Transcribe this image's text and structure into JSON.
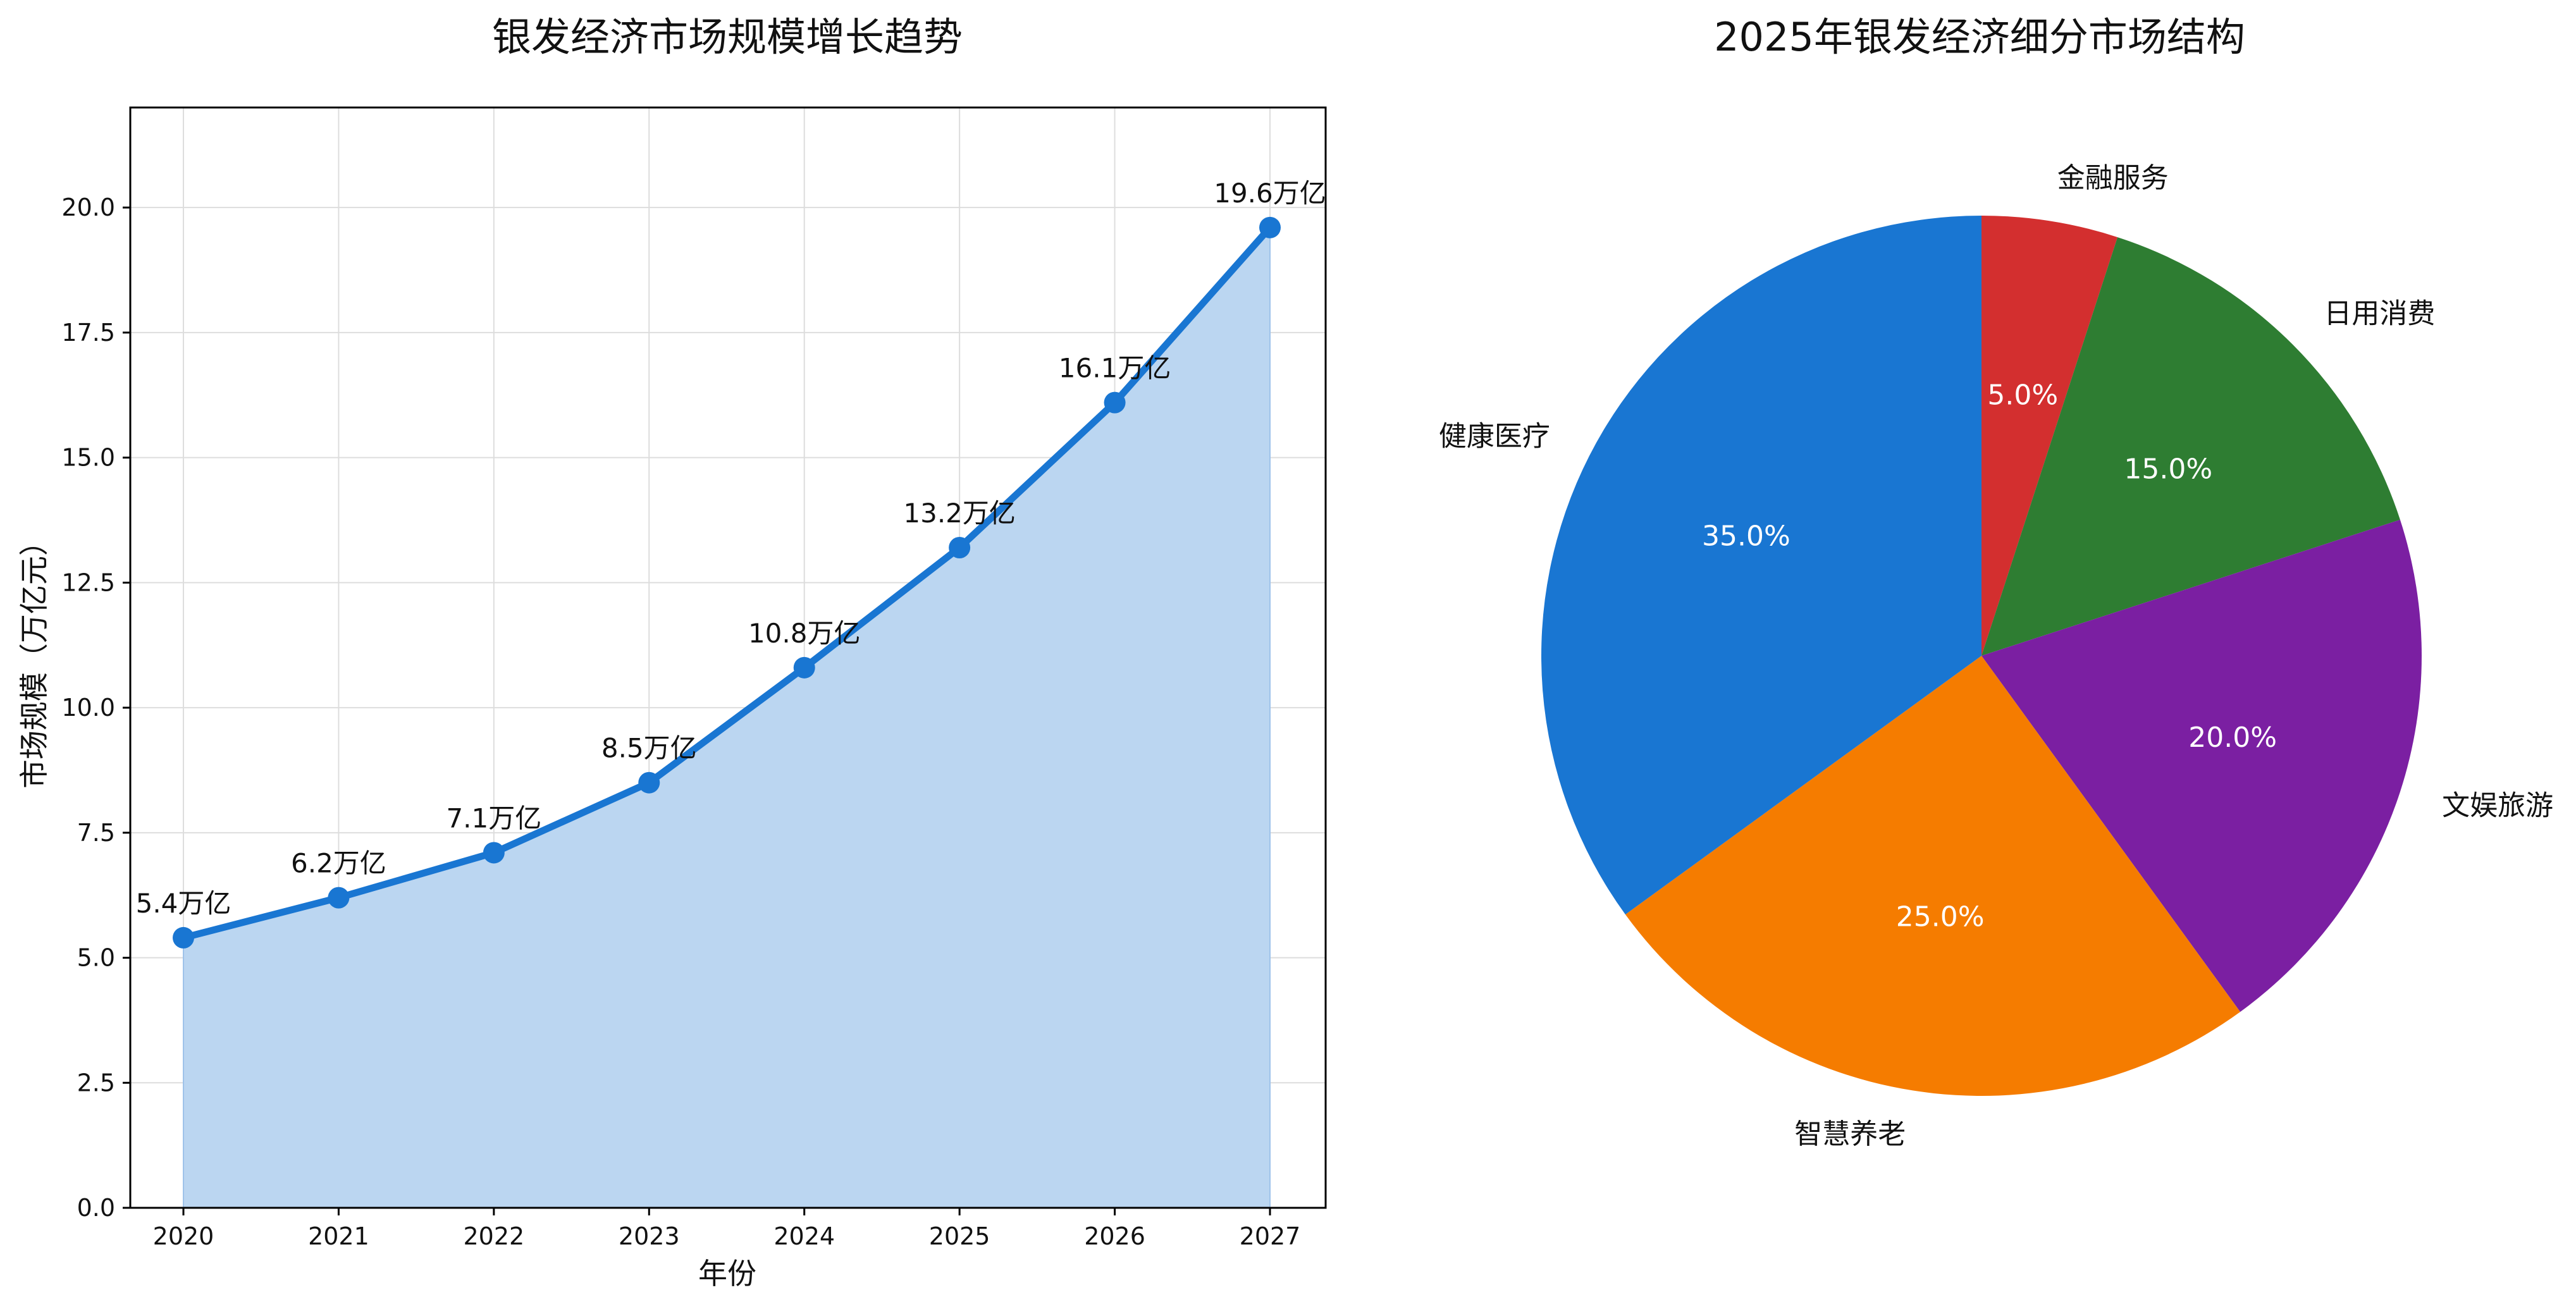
{
  "chart_data": [
    {
      "type": "line",
      "title": "银发经济市场规模增长趋势",
      "xlabel": "年份",
      "ylabel": "市场规模（万亿元）",
      "x": [
        "2020",
        "2021",
        "2022",
        "2023",
        "2024",
        "2025",
        "2026",
        "2027"
      ],
      "series": [
        {
          "values": [
            5.4,
            6.2,
            7.1,
            8.5,
            10.8,
            13.2,
            16.1,
            19.6
          ],
          "color": "#1976d2"
        }
      ],
      "data_labels": [
        "5.4万亿",
        "6.2万亿",
        "7.1万亿",
        "8.5万亿",
        "10.8万亿",
        "13.2万亿",
        "16.1万亿",
        "19.6万亿"
      ],
      "yticks": [
        "0.0",
        "2.5",
        "5.0",
        "7.5",
        "10.0",
        "12.5",
        "15.0",
        "17.5",
        "20.0"
      ],
      "ylim": [
        0,
        22
      ],
      "area_fill": true,
      "area_color": "#bbd6f1",
      "grid": true
    },
    {
      "type": "pie",
      "title": "2025年银发经济细分市场结构",
      "start_angle_deg": 90,
      "direction": "clockwise",
      "slices": [
        {
          "label": "金融服务",
          "value": 5.0,
          "pct": "5.0%",
          "color": "#d32f2f"
        },
        {
          "label": "日用消费",
          "value": 15.0,
          "pct": "15.0%",
          "color": "#2e7d32"
        },
        {
          "label": "文娱旅游",
          "value": 20.0,
          "pct": "20.0%",
          "color": "#7b1fa2"
        },
        {
          "label": "智慧养老",
          "value": 25.0,
          "pct": "25.0%",
          "color": "#f57c00"
        },
        {
          "label": "健康医疗",
          "value": 35.0,
          "pct": "35.0%",
          "color": "#1976d2"
        }
      ]
    }
  ]
}
